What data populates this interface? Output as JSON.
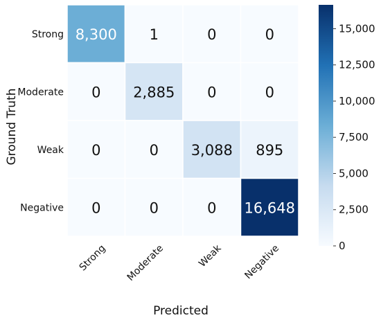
{
  "chart_data": {
    "type": "heatmap",
    "title": "",
    "xlabel": "Predicted",
    "ylabel": "Ground Truth",
    "x_categories": [
      "Strong",
      "Moderate",
      "Weak",
      "Negative"
    ],
    "y_categories": [
      "Strong",
      "Moderate",
      "Weak",
      "Negative"
    ],
    "values": [
      [
        8300,
        1,
        0,
        0
      ],
      [
        0,
        2885,
        0,
        0
      ],
      [
        0,
        0,
        3088,
        895
      ],
      [
        0,
        0,
        0,
        16648
      ]
    ],
    "cell_labels": [
      [
        "8,300",
        "1",
        "0",
        "0"
      ],
      [
        "0",
        "2,885",
        "0",
        "0"
      ],
      [
        "0",
        "0",
        "3,088",
        "895"
      ],
      [
        "0",
        "0",
        "0",
        "16,648"
      ]
    ],
    "colormap": "Blues",
    "colorbar": {
      "range": [
        0,
        16648
      ],
      "ticks": [
        0,
        2500,
        5000,
        7500,
        10000,
        12500,
        15000
      ],
      "tick_labels": [
        "0",
        "2,500",
        "5,000",
        "7,500",
        "10,000",
        "12,500",
        "15,000"
      ]
    },
    "grid": true
  }
}
